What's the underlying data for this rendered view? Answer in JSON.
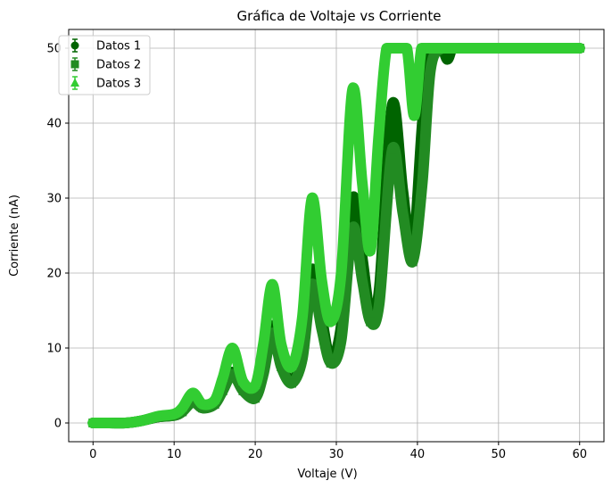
{
  "chart_data": {
    "type": "line",
    "title": "Gráfica de Voltaje vs Corriente",
    "xlabel": "Voltaje (V)",
    "ylabel": "Corriente (nA)",
    "xlim": [
      -3,
      63
    ],
    "ylim": [
      -2.5,
      52.5
    ],
    "xticks": [
      0,
      10,
      20,
      30,
      40,
      50,
      60
    ],
    "yticks": [
      0,
      10,
      20,
      30,
      40,
      50
    ],
    "grid": true,
    "legend_position": "top-left",
    "series": [
      {
        "name": "Datos 1",
        "marker": "circle",
        "color": "#006400",
        "x": [
          0,
          2,
          4,
          6,
          8,
          10,
          11,
          12.3,
          13.5,
          15,
          16,
          17.2,
          18.5,
          20,
          21,
          22.1,
          23.2,
          24.5,
          25.8,
          27,
          28.2,
          29.3,
          30.6,
          32,
          33.2,
          34.2,
          35.3,
          36.9,
          38.2,
          39.4,
          40.6,
          41.6,
          43,
          43.7,
          44.3,
          45,
          50,
          55,
          60
        ],
        "y": [
          0,
          0,
          0,
          0.3,
          0.8,
          1.0,
          1.5,
          3.0,
          2.0,
          2.5,
          4.5,
          6.8,
          4.5,
          3.5,
          7.0,
          13.0,
          8.0,
          5.5,
          9.5,
          20.5,
          14.0,
          8.5,
          13.0,
          30.0,
          22.0,
          14.5,
          18.0,
          42.5,
          31.0,
          22.5,
          40.0,
          50.0,
          50.0,
          48.5,
          50.0,
          50.0,
          50.0,
          50.0,
          50.0
        ]
      },
      {
        "name": "Datos 2",
        "marker": "square",
        "color": "#228B22",
        "x": [
          0,
          2,
          4,
          6,
          8,
          10,
          11,
          12.3,
          13.5,
          15,
          16,
          17.2,
          18.5,
          20,
          21,
          22.1,
          23.2,
          24.5,
          25.8,
          27,
          28.2,
          29.3,
          30.6,
          32,
          33.2,
          34.2,
          35.3,
          36.9,
          38.2,
          39.4,
          40.6,
          41.6,
          43,
          45,
          50,
          55,
          60
        ],
        "y": [
          0,
          0,
          0,
          0.3,
          0.8,
          1.0,
          1.5,
          2.8,
          2.0,
          2.5,
          4.3,
          6.5,
          4.3,
          3.3,
          6.5,
          12.0,
          7.5,
          5.3,
          8.5,
          18.5,
          12.5,
          8.0,
          11.0,
          26.0,
          19.0,
          13.5,
          16.0,
          36.5,
          28.0,
          21.5,
          32.0,
          47.0,
          50.0,
          50.0,
          50.0,
          50.0,
          50.0
        ]
      },
      {
        "name": "Datos 3",
        "marker": "triangle",
        "color": "#32CD32",
        "x": [
          0,
          2,
          4,
          6,
          8,
          10,
          11,
          12.3,
          13.5,
          15,
          16,
          17.2,
          18.5,
          20,
          21,
          22.1,
          23.2,
          24.5,
          25.8,
          27,
          28.2,
          29.3,
          30.6,
          32,
          33.2,
          34.2,
          35.2,
          36.2,
          37.5,
          38.7,
          39.6,
          40.5,
          41.5,
          45,
          50,
          55,
          60
        ],
        "y": [
          0,
          0,
          0,
          0.3,
          0.9,
          1.2,
          2.0,
          4.0,
          2.5,
          3.0,
          6.0,
          10.0,
          5.5,
          5.0,
          10.5,
          18.5,
          10.5,
          7.5,
          14.0,
          30.0,
          19.0,
          13.5,
          20.0,
          44.5,
          32.0,
          23.0,
          38.0,
          50.0,
          50.0,
          50.0,
          41.0,
          50.0,
          50.0,
          50.0,
          50.0,
          50.0,
          50.0
        ]
      }
    ]
  }
}
